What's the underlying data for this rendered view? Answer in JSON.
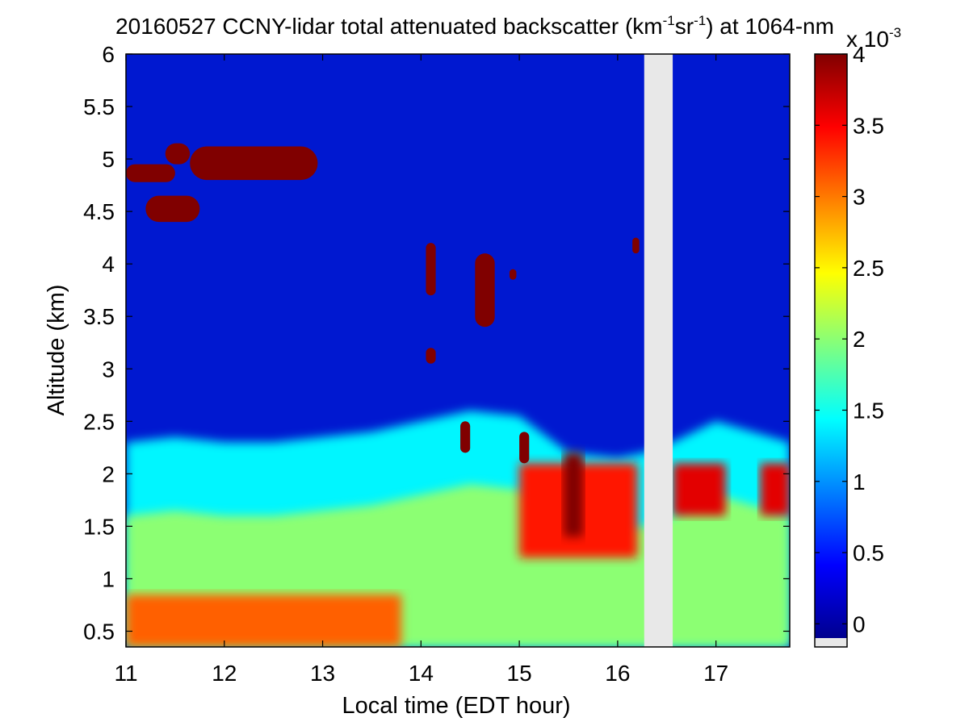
{
  "chart_data": {
    "type": "heatmap",
    "title": {
      "prefix": "20160527 CCNY-lidar total attenuated backscatter (km",
      "exp1": "-1",
      "mid1": "sr",
      "exp2": "-1",
      "mid2": ") at 1064-nm"
    },
    "xlabel": "Local time (EDT hour)",
    "ylabel": "Altitude (km)",
    "xlim": [
      11,
      17.75
    ],
    "ylim": [
      0.35,
      6.0
    ],
    "x_ticks": [
      11,
      12,
      13,
      14,
      15,
      16,
      17
    ],
    "y_ticks": [
      0.5,
      1,
      1.5,
      2,
      2.5,
      3,
      3.5,
      4,
      4.5,
      5,
      5.5,
      6
    ],
    "y_tick_labels": [
      "0.5",
      "1",
      "1.5",
      "2",
      "2.5",
      "3",
      "3.5",
      "4",
      "4.5",
      "5",
      "5.5",
      "6"
    ],
    "colorbar": {
      "range": [
        -0.1,
        4.0
      ],
      "ticks": [
        0,
        0.5,
        1,
        1.5,
        2,
        2.5,
        3,
        3.5,
        4
      ],
      "tick_labels": [
        "0",
        "0.5",
        "1",
        "1.5",
        "2",
        "2.5",
        "3",
        "3.5",
        "4"
      ],
      "multiplier": {
        "base": "x 10",
        "exp": "-3"
      },
      "colormap": "jet"
    },
    "data_gap": {
      "x_start": 16.27,
      "x_end": 16.56,
      "color": "#e8e8e8"
    },
    "grid": false,
    "boundary_layer_top_km": [
      [
        11.0,
        2.3
      ],
      [
        11.5,
        2.35
      ],
      [
        12.0,
        2.3
      ],
      [
        12.5,
        2.3
      ],
      [
        13.0,
        2.35
      ],
      [
        13.5,
        2.4
      ],
      [
        14.0,
        2.5
      ],
      [
        14.5,
        2.6
      ],
      [
        15.0,
        2.55
      ],
      [
        15.5,
        2.2
      ],
      [
        16.0,
        2.15
      ],
      [
        16.27,
        2.2
      ],
      [
        16.56,
        2.3
      ],
      [
        17.0,
        2.5
      ],
      [
        17.75,
        2.3
      ]
    ],
    "clouds": [
      {
        "x_start": 11.0,
        "x_end": 11.5,
        "y_bottom": 4.78,
        "y_top": 4.95
      },
      {
        "x_start": 11.2,
        "x_end": 11.75,
        "y_bottom": 4.4,
        "y_top": 4.65
      },
      {
        "x_start": 11.4,
        "x_end": 11.65,
        "y_bottom": 4.95,
        "y_top": 5.15
      },
      {
        "x_start": 11.65,
        "x_end": 12.95,
        "y_bottom": 4.8,
        "y_top": 5.12
      },
      {
        "x_start": 14.05,
        "x_end": 14.15,
        "y_bottom": 3.7,
        "y_top": 4.2
      },
      {
        "x_start": 14.55,
        "x_end": 14.75,
        "y_bottom": 3.4,
        "y_top": 4.1
      },
      {
        "x_start": 14.05,
        "x_end": 14.15,
        "y_bottom": 3.05,
        "y_top": 3.2
      },
      {
        "x_start": 14.9,
        "x_end": 14.97,
        "y_bottom": 3.85,
        "y_top": 3.95
      },
      {
        "x_start": 16.15,
        "x_end": 16.22,
        "y_bottom": 4.1,
        "y_top": 4.25
      },
      {
        "x_start": 14.4,
        "x_end": 14.5,
        "y_bottom": 2.2,
        "y_top": 2.5
      },
      {
        "x_start": 15.0,
        "x_end": 15.1,
        "y_bottom": 2.1,
        "y_top": 2.4
      }
    ],
    "strong_aerosol_regions": [
      {
        "x_start": 15.0,
        "x_end": 16.2,
        "y_bottom": 1.2,
        "y_top": 2.1,
        "value": 3.4
      },
      {
        "x_start": 15.45,
        "x_end": 15.65,
        "y_bottom": 1.4,
        "y_top": 2.2,
        "value": 4.0
      },
      {
        "x_start": 16.56,
        "x_end": 17.1,
        "y_bottom": 1.6,
        "y_top": 2.1,
        "value": 3.6
      },
      {
        "x_start": 17.45,
        "x_end": 17.75,
        "y_bottom": 1.6,
        "y_top": 2.1,
        "value": 3.6
      },
      {
        "x_start": 11.0,
        "x_end": 13.8,
        "y_bottom": 0.35,
        "y_top": 0.85,
        "value": 3.1
      }
    ]
  }
}
